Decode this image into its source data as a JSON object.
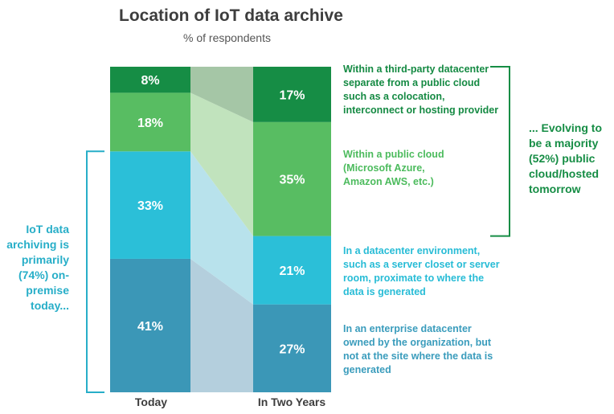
{
  "chart_data": {
    "type": "bar",
    "title": "Location of IoT data archive",
    "subtitle": "% of respondents",
    "categories": [
      "Today",
      "In Two Years"
    ],
    "series": [
      {
        "name": "In an enterprise datacenter owned by the organization, but not at the site where the data is generated",
        "values": [
          41,
          27
        ],
        "label_color": "#3a9cbc",
        "color": "#3b97b7",
        "band_color": "#b4cfdd"
      },
      {
        "name": "In a datacenter environment, such as a server closet or server room, proximate to where the data is generated",
        "values": [
          33,
          21
        ],
        "label_color": "#27bcd6",
        "color": "#2bbfd8",
        "band_color": "#b8e2ec"
      },
      {
        "name": "Within a public cloud (Microsoft Azure, Amazon AWS, etc.)",
        "values": [
          18,
          35
        ],
        "label_color": "#4cbb5d",
        "color": "#58bd62",
        "band_color": "#c1e3bd"
      },
      {
        "name": "Within a third-party datacenter separate from a public cloud such as a colocation, interconnect or hosting provider",
        "values": [
          8,
          17
        ],
        "label_color": "#158a43",
        "color": "#168d45",
        "band_color": "#a5c6a6"
      }
    ],
    "data_labels": [
      [
        "41%",
        "27%"
      ],
      [
        "33%",
        "21%"
      ],
      [
        "18%",
        "35%"
      ],
      [
        "8%",
        "17%"
      ]
    ],
    "stacked": true,
    "ylim": [
      0,
      100
    ],
    "grid": false,
    "legend": "right"
  },
  "annotations": {
    "left_callout": "IoT data archiving is primarily (74%) on-premise today...",
    "left_color": "#27aec8",
    "right_callout": "... Evolving to be a majority (52%) public cloud/hosted tomorrow",
    "right_color": "#168d45"
  }
}
